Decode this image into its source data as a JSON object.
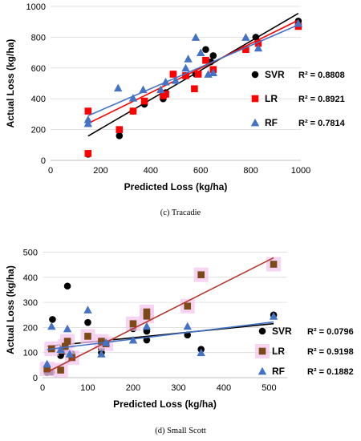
{
  "colors": {
    "svr": "#000000",
    "lr": "#ff0000",
    "rf": "#4472c4",
    "lr_b": "#7b4a18",
    "lr_halo": "#f5c6ef",
    "lr_line_b": "#b5382a",
    "grid": "#d9d9d9"
  },
  "chart_data": [
    {
      "type": "scatter",
      "caption": "(c) Tracadie",
      "xlabel": "Predicted Loss (kg/ha)",
      "ylabel": "Actual Loss (kg/ha)",
      "xlim": [
        0,
        1000
      ],
      "ylim": [
        0,
        1000
      ],
      "xticks": [
        "0",
        "200",
        "400",
        "600",
        "800",
        "1000"
      ],
      "yticks": [
        "0",
        "200",
        "400",
        "600",
        "800",
        "1000"
      ],
      "grid": "horizontal",
      "legend_position": "right",
      "series": [
        {
          "name": "SVR",
          "r2": "R² = 0.8808",
          "marker": "circle",
          "points": [
            [
              150,
              40
            ],
            [
              275,
              160
            ],
            [
              330,
              320
            ],
            [
              375,
              365
            ],
            [
              450,
              400
            ],
            [
              460,
              440
            ],
            [
              490,
              560
            ],
            [
              540,
              550
            ],
            [
              580,
              560
            ],
            [
              620,
              720
            ],
            [
              640,
              640
            ],
            [
              650,
              680
            ],
            [
              820,
              800
            ],
            [
              990,
              905
            ]
          ],
          "trend": [
            [
              150,
              158
            ],
            [
              990,
              955
            ]
          ]
        },
        {
          "name": "LR",
          "r2": "R² = 0.8921",
          "marker": "square",
          "points": [
            [
              150,
              320
            ],
            [
              150,
              45
            ],
            [
              275,
              200
            ],
            [
              330,
              320
            ],
            [
              375,
              385
            ],
            [
              450,
              420
            ],
            [
              460,
              430
            ],
            [
              490,
              560
            ],
            [
              540,
              550
            ],
            [
              575,
              465
            ],
            [
              590,
              560
            ],
            [
              620,
              650
            ],
            [
              650,
              590
            ],
            [
              780,
              720
            ],
            [
              830,
              760
            ],
            [
              990,
              870
            ]
          ],
          "trend": [
            [
              150,
              240
            ],
            [
              990,
              910
            ]
          ]
        },
        {
          "name": "RF",
          "r2": "R² = 0.7814",
          "marker": "triangle",
          "points": [
            [
              150,
              265
            ],
            [
              150,
              240
            ],
            [
              270,
              470
            ],
            [
              330,
              405
            ],
            [
              370,
              460
            ],
            [
              440,
              460
            ],
            [
              460,
              510
            ],
            [
              500,
              520
            ],
            [
              540,
              600
            ],
            [
              550,
              660
            ],
            [
              580,
              800
            ],
            [
              600,
              700
            ],
            [
              630,
              560
            ],
            [
              650,
              570
            ],
            [
              780,
              800
            ],
            [
              830,
              730
            ],
            [
              990,
              890
            ]
          ],
          "trend": [
            [
              150,
              290
            ],
            [
              990,
              880
            ]
          ]
        }
      ]
    },
    {
      "type": "scatter",
      "caption": "(d) Small Scott",
      "xlabel": "Predicted Loss (kg/ha)",
      "ylabel": "Actual Loss (kg/ha)",
      "xlim": [
        0,
        540
      ],
      "ylim": [
        0,
        540
      ],
      "xticks": [
        "0",
        "100",
        "200",
        "300",
        "400",
        "500"
      ],
      "yticks": [
        "0",
        "100",
        "200",
        "300",
        "400",
        "500"
      ],
      "grid": "horizontal",
      "legend_position": "right",
      "series": [
        {
          "name": "SVR",
          "r2": "R² = 0.0796",
          "marker": "circle",
          "points": [
            [
              10,
              20
            ],
            [
              20,
              22
            ],
            [
              22,
              232
            ],
            [
              40,
              88
            ],
            [
              50,
              105
            ],
            [
              55,
              365
            ],
            [
              65,
              95
            ],
            [
              100,
              220
            ],
            [
              130,
              115
            ],
            [
              130,
              100
            ],
            [
              200,
              195
            ],
            [
              230,
              185
            ],
            [
              230,
              150
            ],
            [
              320,
              170
            ],
            [
              350,
              113
            ],
            [
              510,
              250
            ]
          ],
          "trend": [
            [
              10,
              125
            ],
            [
              510,
              215
            ]
          ]
        },
        {
          "name": "LR",
          "r2": "R² = 0.9198",
          "marker": "square",
          "points": [
            [
              10,
              35
            ],
            [
              20,
              115
            ],
            [
              40,
              30
            ],
            [
              50,
              125
            ],
            [
              55,
              145
            ],
            [
              65,
              80
            ],
            [
              100,
              165
            ],
            [
              130,
              145
            ],
            [
              140,
              135
            ],
            [
              200,
              215
            ],
            [
              230,
              262
            ],
            [
              230,
              245
            ],
            [
              320,
              285
            ],
            [
              350,
              410
            ],
            [
              510,
              452
            ]
          ],
          "trend": [
            [
              10,
              22
            ],
            [
              510,
              478
            ]
          ]
        },
        {
          "name": "RF",
          "r2": "R² = 0.1882",
          "marker": "triangle",
          "points": [
            [
              10,
              55
            ],
            [
              20,
              205
            ],
            [
              40,
              113
            ],
            [
              55,
              195
            ],
            [
              60,
              95
            ],
            [
              100,
              270
            ],
            [
              130,
              95
            ],
            [
              140,
              140
            ],
            [
              200,
              150
            ],
            [
              230,
              205
            ],
            [
              320,
              205
            ],
            [
              350,
              100
            ],
            [
              510,
              245
            ]
          ],
          "trend": [
            [
              10,
              112
            ],
            [
              510,
              222
            ]
          ]
        }
      ]
    }
  ]
}
